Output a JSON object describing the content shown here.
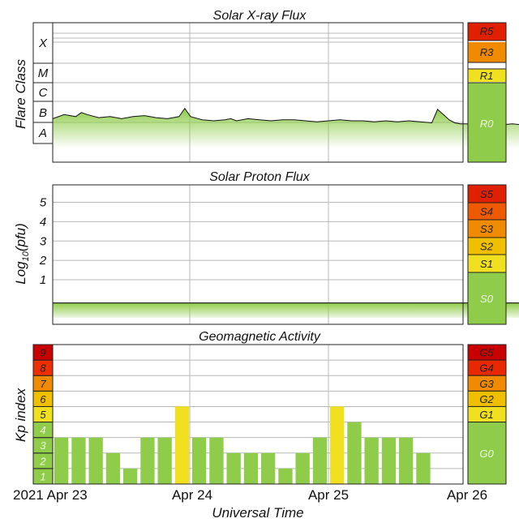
{
  "colors": {
    "green": "#8fcc4a",
    "light_green": "#cfe9a8",
    "yellow": "#f0e020",
    "gold": "#f0c000",
    "orange": "#f08a00",
    "red_orange": "#ee5a00",
    "red": "#e02000",
    "dark_red": "#c80000",
    "grid": "#b0b0b0"
  },
  "chart_data": [
    {
      "type": "area",
      "title": "Solar X-ray Flux",
      "ylabel": "Flare Class",
      "y_scale": "log",
      "flare_classes": [
        "X",
        "M",
        "C",
        "B",
        "A"
      ],
      "x_unit": "hours since 2021 Apr 23 00:00 UT",
      "x": [
        0,
        2,
        4,
        5,
        6,
        8,
        10,
        12,
        14,
        16,
        18,
        20,
        22,
        23,
        24,
        26,
        28,
        30,
        31,
        32,
        34,
        36,
        38,
        40,
        42,
        44,
        46,
        48,
        50,
        52,
        54,
        56,
        58,
        60,
        62,
        64,
        66,
        67,
        68,
        69,
        70,
        71,
        72,
        74,
        76,
        78,
        80,
        82,
        84,
        86,
        88,
        90,
        92,
        94,
        95,
        96,
        97,
        98
      ],
      "values": [
        -6.8,
        -6.6,
        -6.7,
        -6.5,
        -6.6,
        -6.75,
        -6.7,
        -6.8,
        -6.7,
        -6.65,
        -6.75,
        -6.8,
        -6.7,
        -6.3,
        -6.7,
        -6.85,
        -6.9,
        -6.85,
        -6.8,
        -6.9,
        -6.8,
        -6.85,
        -6.9,
        -6.85,
        -6.85,
        -6.9,
        -6.95,
        -6.9,
        -6.85,
        -6.9,
        -6.9,
        -6.95,
        -6.9,
        -6.95,
        -6.9,
        -6.95,
        -7.0,
        -6.35,
        -6.6,
        -6.85,
        -7.0,
        -7.05,
        -7.05,
        -7.1,
        -7.05,
        -7.1,
        -7.05,
        -7.1,
        -7.05,
        -7.1,
        -7.1,
        -7.05,
        -7.05,
        -7.1,
        -6.75,
        -7.1,
        -7.0,
        -6.9
      ],
      "scale": [
        {
          "label": "R5",
          "color": "#e02000"
        },
        {
          "label": "R3",
          "color": "#f08a00"
        },
        {
          "label": "R1",
          "color": "#f0e020"
        },
        {
          "label": "R0",
          "color": "#8fcc4a"
        }
      ]
    },
    {
      "type": "area",
      "title": "Solar Proton Flux",
      "ylabel": "Log10(pfu)",
      "ytick_labels": [
        "1",
        "2",
        "3",
        "4",
        "5"
      ],
      "ylim": [
        -1.3,
        5.9
      ],
      "x_unit": "hours since 2021 Apr 23 00:00 UT",
      "x": [
        0,
        24,
        48,
        72,
        98
      ],
      "values": [
        -0.2,
        -0.2,
        -0.2,
        -0.2,
        -0.2
      ],
      "scale": [
        {
          "label": "S5",
          "color": "#e02000"
        },
        {
          "label": "S4",
          "color": "#ee5a00"
        },
        {
          "label": "S3",
          "color": "#f08a00"
        },
        {
          "label": "S2",
          "color": "#f0c000"
        },
        {
          "label": "S1",
          "color": "#f0e020"
        },
        {
          "label": "S0",
          "color": "#8fcc4a"
        }
      ]
    },
    {
      "type": "bar",
      "title": "Geomagnetic Activity",
      "ylabel": "Kp index",
      "xlabel": "Universal Time",
      "ylim": [
        0,
        9
      ],
      "x_unit": "hours since 2021 Apr 23 00:00 UT",
      "bar_interval_hours": 3,
      "values": [
        3,
        3,
        3,
        2,
        1,
        3,
        3,
        5,
        3,
        3,
        2,
        2,
        2,
        1,
        2,
        3,
        5,
        4,
        3,
        3,
        3,
        2
      ],
      "kp_labels": [
        "1",
        "2",
        "3",
        "4",
        "5",
        "6",
        "7",
        "8",
        "9"
      ],
      "kp_colors": [
        "#8fcc4a",
        "#8fcc4a",
        "#8fcc4a",
        "#8fcc4a",
        "#f0e020",
        "#f0c000",
        "#f08a00",
        "#ee3000",
        "#c80000"
      ],
      "scale": [
        {
          "label": "G5",
          "color": "#c80000"
        },
        {
          "label": "G4",
          "color": "#e82800"
        },
        {
          "label": "G3",
          "color": "#f08a00"
        },
        {
          "label": "G2",
          "color": "#f0c000"
        },
        {
          "label": "G1",
          "color": "#f0e020"
        },
        {
          "label": "G0",
          "color": "#8fcc4a"
        }
      ],
      "x_tick_labels": [
        "2021 Apr 23",
        "Apr 24",
        "Apr 25",
        "Apr 26"
      ]
    }
  ]
}
